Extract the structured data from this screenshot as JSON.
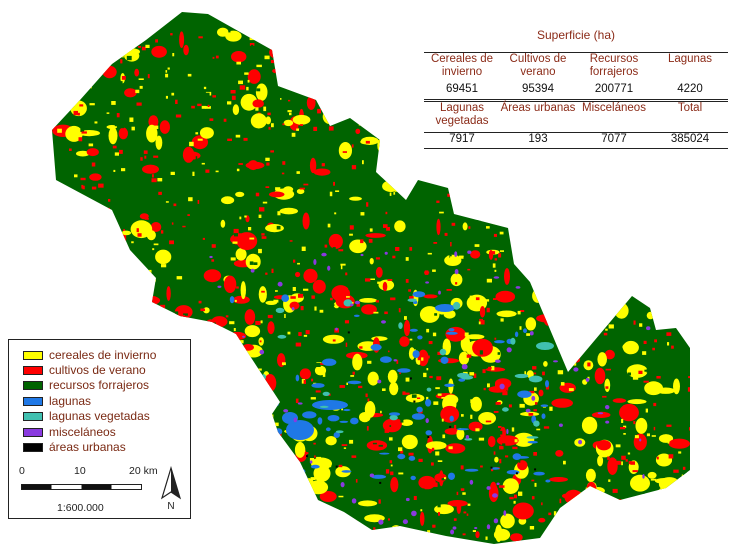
{
  "map": {
    "colors": {
      "cereales": "#ffff00",
      "cultivos": "#ff0000",
      "recursos": "#006400",
      "lagunas": "#1f78e6",
      "vegetadas": "#40c0b0",
      "miscelaneos": "#8a3ae0",
      "urbanas": "#000000"
    }
  },
  "summary": {
    "title": "Superficie (ha)",
    "row1_headers": [
      "Cereales de invierno",
      "Cultivos de verano",
      "Recursos forrajeros",
      "Lagunas"
    ],
    "row1_values": [
      "69451",
      "95394",
      "200771",
      "4220"
    ],
    "row2_headers": [
      "Lagunas vegetadas",
      "Áreas urbanas",
      "Misceláneos",
      "Total"
    ],
    "row2_values": [
      "7917",
      "193",
      "7077",
      "385024"
    ]
  },
  "legend": {
    "items": [
      {
        "label": "cereales de invierno",
        "color": "#ffff00"
      },
      {
        "label": "cultivos de verano",
        "color": "#ff0000"
      },
      {
        "label": "recursos forrajeros",
        "color": "#006400"
      },
      {
        "label": "lagunas",
        "color": "#1f78e6"
      },
      {
        "label": "lagunas vegetadas",
        "color": "#40c0b0"
      },
      {
        "label": "misceláneos",
        "color": "#8a3ae0"
      },
      {
        "label": "áreas urbanas",
        "color": "#000000"
      }
    ],
    "scale": {
      "tick0": "0",
      "tick1": "10",
      "tick2": "20 km",
      "ratio": "1:600.000"
    },
    "north_label": "N",
    "north_icon": "north-arrow-icon"
  }
}
